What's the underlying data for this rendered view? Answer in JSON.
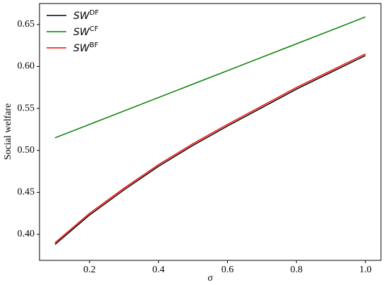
{
  "chart_data": {
    "type": "line",
    "x_label": "σ",
    "y_label": "Social welfare",
    "x": [
      0.1,
      0.2,
      0.3,
      0.4,
      0.5,
      0.6,
      0.7,
      0.8,
      0.9,
      1.0
    ],
    "series": [
      {
        "name": "SWDF",
        "color": "#000000",
        "values": [
          0.388,
          0.423,
          0.453,
          0.481,
          0.506,
          0.529,
          0.551,
          0.573,
          0.593,
          0.613
        ]
      },
      {
        "name": "SWCF",
        "color": "#008000",
        "values": [
          0.515,
          0.531,
          0.547,
          0.563,
          0.579,
          0.595,
          0.611,
          0.627,
          0.643,
          0.659
        ]
      },
      {
        "name": "SWBF",
        "color": "#ff0000",
        "values": [
          0.39,
          0.425,
          0.455,
          0.483,
          0.508,
          0.531,
          0.553,
          0.575,
          0.595,
          0.615
        ]
      }
    ],
    "xlim": [
      0.055,
      1.045
    ],
    "ylim": [
      0.369,
      0.675
    ],
    "xticks": [
      {
        "value": 0.2,
        "label": "0.2"
      },
      {
        "value": 0.4,
        "label": "0.4"
      },
      {
        "value": 0.6,
        "label": "0.6"
      },
      {
        "value": 0.8,
        "label": "0.8"
      },
      {
        "value": 1.0,
        "label": "1.0"
      }
    ],
    "yticks": [
      {
        "value": 0.4,
        "label": "0.40"
      },
      {
        "value": 0.45,
        "label": "0.45"
      },
      {
        "value": 0.5,
        "label": "0.50"
      },
      {
        "value": 0.55,
        "label": "0.55"
      },
      {
        "value": 0.6,
        "label": "0.60"
      },
      {
        "value": 0.65,
        "label": "0.65"
      }
    ],
    "legend": "upper left",
    "grid": false
  }
}
